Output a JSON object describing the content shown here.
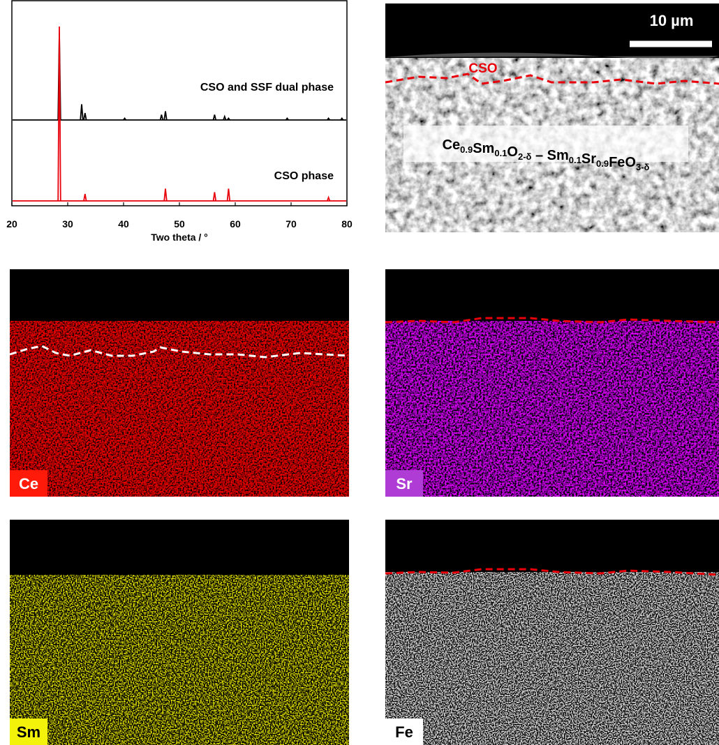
{
  "chart_data": {
    "type": "line",
    "xlabel": "Two theta / °",
    "xlim": [
      20,
      80
    ],
    "xticks": [
      20,
      30,
      40,
      50,
      60,
      70,
      80
    ],
    "series": [
      {
        "name": "CSO and SSF dual phase",
        "color": "#000000",
        "x": [
          28.5,
          32.5,
          33.1,
          40.2,
          46.8,
          47.5,
          56.3,
          58.1,
          58.8,
          69.3,
          76.7,
          79.1
        ],
        "values": [
          50,
          9,
          4,
          1,
          3,
          5,
          3,
          2,
          1,
          1,
          1,
          1
        ]
      },
      {
        "name": "CSO phase",
        "color": "#e8000b",
        "x": [
          28.5,
          33.1,
          47.5,
          56.3,
          58.8,
          76.7
        ],
        "values": [
          100,
          4,
          7,
          5,
          7,
          2
        ]
      }
    ]
  },
  "sem": {
    "scale_bar": "10 µm",
    "layer_label": "CSO",
    "formula": [
      [
        "Ce",
        "0.9"
      ],
      [
        "Sm",
        "0.1"
      ],
      [
        "O",
        "2-δ"
      ],
      [
        " – Sm",
        "0.1"
      ],
      [
        "Sr",
        "0.9"
      ],
      [
        "FeO",
        "3-δ"
      ]
    ]
  },
  "maps": [
    {
      "label": "Ce",
      "color": "#ff1a0a"
    },
    {
      "label": "Sr",
      "color": "#b03cd6"
    },
    {
      "label": "Sm",
      "color": "#f2f20a"
    },
    {
      "label": "Fe",
      "color": "#ffffff"
    }
  ]
}
